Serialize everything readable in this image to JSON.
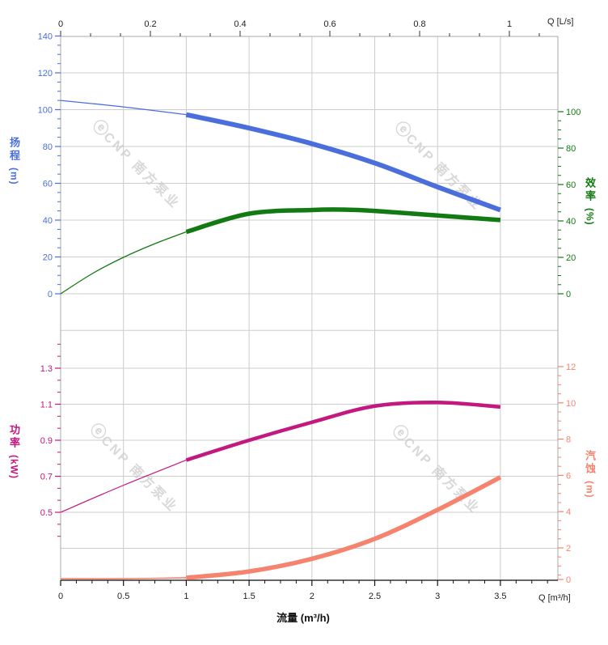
{
  "watermark": {
    "logo_glyph": "ⓔ",
    "text": "CNP 南方泵业"
  },
  "chart_data": {
    "type": "line",
    "description": "Pump performance curves: head, efficiency, power and NPSH versus flow rate",
    "grid": true,
    "axes": {
      "top": {
        "side": "top",
        "unit_label": "Q [L/s]",
        "ticks": [
          "0",
          "0.2",
          "0.4",
          "0.6",
          "0.8",
          "1"
        ],
        "range": [
          0,
          1.11
        ],
        "color": "#222222"
      },
      "bottom": {
        "side": "bottom",
        "title": "流量 (m³/h)",
        "unit_label": "Q [m³/h]",
        "ticks": [
          "0",
          "0.5",
          "1",
          "1.5",
          "2",
          "2.5",
          "3",
          "3.5"
        ],
        "range": [
          0,
          3.96
        ],
        "color": "#222222"
      },
      "head": {
        "side": "left",
        "title": "扬程",
        "unit": "(m)",
        "ticks": [
          "140",
          "120",
          "100",
          "80",
          "60",
          "40",
          "20",
          "0"
        ],
        "range": [
          0,
          140
        ],
        "color": "#4a6edc"
      },
      "efficiency": {
        "side": "right",
        "title": "效率",
        "unit": "(%)",
        "ticks": [
          "100",
          "80",
          "60",
          "40",
          "20",
          "0"
        ],
        "range": [
          0,
          100
        ],
        "color": "#127a12"
      },
      "power": {
        "side": "left",
        "title": "功率",
        "unit": "(kW)",
        "ticks": [
          "1.3",
          "1.1",
          "0.9",
          "0.7",
          "0.5"
        ],
        "range": [
          0.3,
          1.4
        ],
        "color": "#c2187f"
      },
      "npsh": {
        "side": "right",
        "title": "汽蚀",
        "unit": "(m)",
        "ticks": [
          "12",
          "10",
          "8",
          "6",
          "4",
          "2",
          "0"
        ],
        "range": [
          0,
          12
        ],
        "color": "#f5836e"
      }
    },
    "series": [
      {
        "name": "head",
        "axis": "head",
        "units": "m",
        "color": "#4a6edc",
        "thick_from": 1,
        "points": [
          [
            0,
            105
          ],
          [
            0.5,
            101.5
          ],
          [
            1,
            97.3
          ],
          [
            1.5,
            90
          ],
          [
            2,
            81.5
          ],
          [
            2.5,
            71
          ],
          [
            3,
            58
          ],
          [
            3.5,
            45.5
          ]
        ]
      },
      {
        "name": "efficiency",
        "axis": "efficiency",
        "units": "%",
        "color": "#127a12",
        "thick_from": 1,
        "points": [
          [
            0,
            0
          ],
          [
            0.25,
            11
          ],
          [
            0.5,
            20
          ],
          [
            0.75,
            27.5
          ],
          [
            1,
            34
          ],
          [
            1.5,
            44
          ],
          [
            2,
            46
          ],
          [
            2.25,
            46.2
          ],
          [
            2.5,
            45.5
          ],
          [
            3,
            43
          ],
          [
            3.5,
            40.5
          ]
        ]
      },
      {
        "name": "power",
        "axis": "power",
        "units": "kW",
        "color": "#c2187f",
        "thick_from": 1,
        "points": [
          [
            0,
            0.5
          ],
          [
            0.5,
            0.65
          ],
          [
            1,
            0.79
          ],
          [
            1.5,
            0.9
          ],
          [
            2,
            1.0
          ],
          [
            2.5,
            1.09
          ],
          [
            3,
            1.11
          ],
          [
            3.5,
            1.085
          ]
        ]
      },
      {
        "name": "npsh",
        "axis": "npsh",
        "units": "m",
        "color": "#f5836e",
        "thick_from": 1,
        "points": [
          [
            0,
            0.3
          ],
          [
            0.5,
            0.3
          ],
          [
            1,
            0.35
          ],
          [
            1.5,
            0.7
          ],
          [
            2,
            1.4
          ],
          [
            2.5,
            2.5
          ],
          [
            3,
            4.1
          ],
          [
            3.5,
            5.9
          ]
        ]
      }
    ]
  }
}
